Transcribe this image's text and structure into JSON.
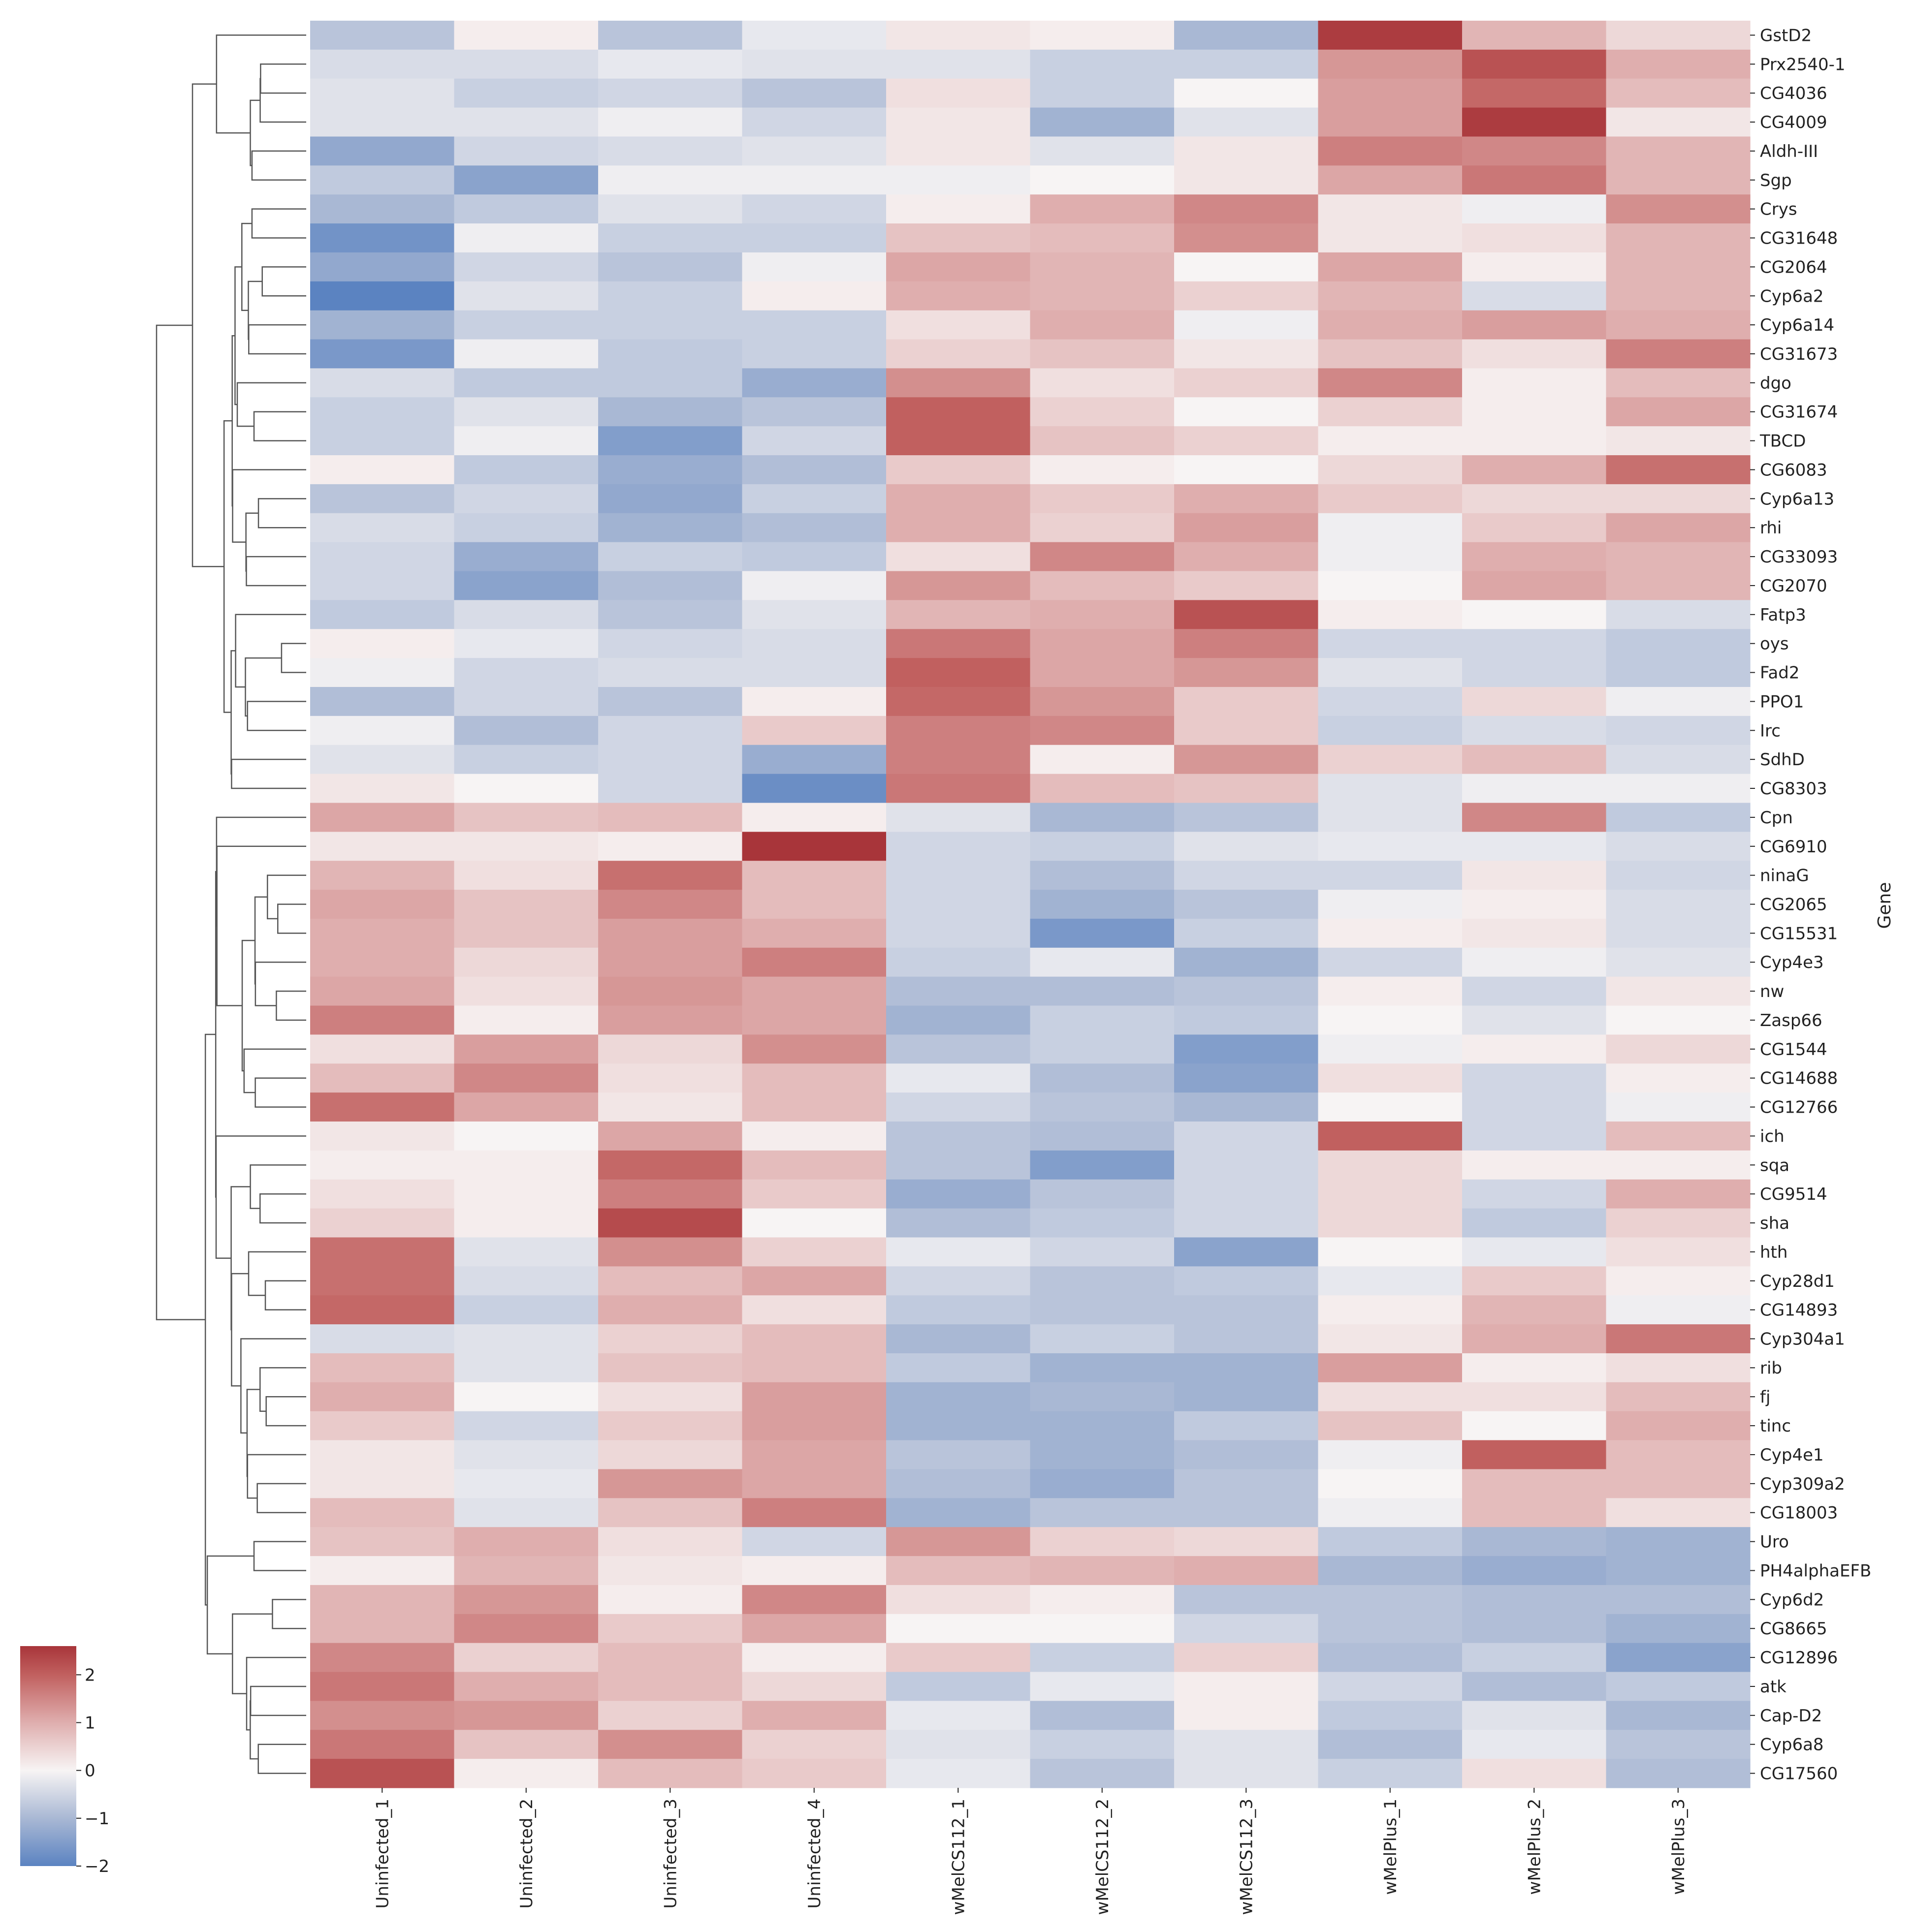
{
  "chart_data": {
    "type": "heatmap",
    "title": "",
    "ylabel": "Gene",
    "xlabel": "",
    "colorbar": {
      "ticks": [
        -2,
        -1,
        0,
        1,
        2
      ],
      "tick_labels": [
        "−2",
        "−1",
        "0",
        "1",
        "2"
      ],
      "range": [
        -2,
        2.6
      ]
    },
    "colors": {
      "neg2": "#5b83c1",
      "neg1": "#a9b8d4",
      "zero": "#f7f4f4",
      "pos1": "#dfaeae",
      "pos2": "#c1605f",
      "max": "#a8353a"
    },
    "columns": [
      "Uninfected_1",
      "Uninfected_2",
      "Uninfected_3",
      "Uninfected_4",
      "wMelCS112_1",
      "wMelCS112_2",
      "wMelCS112_3",
      "wMelPlus_1",
      "wMelPlus_2",
      "wMelPlus_3"
    ],
    "rows": [
      "GstD2",
      "Prx2540-1",
      "CG4036",
      "CG4009",
      "Aldh-III",
      "Sgp",
      "Crys",
      "CG31648",
      "CG2064",
      "Cyp6a2",
      "Cyp6a14",
      "CG31673",
      "dgo",
      "CG31674",
      "TBCD",
      "CG6083",
      "Cyp6a13",
      "rhi",
      "CG33093",
      "CG2070",
      "Fatp3",
      "oys",
      "Fad2",
      "PPO1",
      "Irc",
      "SdhD",
      "CG8303",
      "Cpn",
      "CG6910",
      "ninaG",
      "CG2065",
      "CG15531",
      "Cyp4e3",
      "nw",
      "Zasp66",
      "CG1544",
      "CG14688",
      "CG12766",
      "ich",
      "sqa",
      "CG9514",
      "sha",
      "hth",
      "Cyp28d1",
      "CG14893",
      "Cyp304a1",
      "rib",
      "fj",
      "tinc",
      "Cyp4e1",
      "Cyp309a2",
      "CG18003",
      "Uro",
      "PH4alphaEFB",
      "Cyp6d2",
      "CG8665",
      "CG12896",
      "atk",
      "Cap-D2",
      "Cyp6a8",
      "CG17560"
    ],
    "values": [
      [
        -0.8,
        0.1,
        -0.8,
        -0.2,
        0.2,
        0.1,
        -1.0,
        2.5,
        0.9,
        0.4
      ],
      [
        -0.4,
        -0.4,
        -0.2,
        -0.3,
        -0.3,
        -0.6,
        -0.6,
        1.3,
        2.2,
        1.0
      ],
      [
        -0.3,
        -0.6,
        -0.5,
        -0.8,
        0.3,
        -0.6,
        0.0,
        1.2,
        1.9,
        0.8
      ],
      [
        -0.3,
        -0.3,
        -0.1,
        -0.5,
        0.2,
        -1.1,
        -0.3,
        1.2,
        2.5,
        0.2
      ],
      [
        -1.3,
        -0.5,
        -0.4,
        -0.3,
        0.2,
        -0.3,
        0.2,
        1.6,
        1.5,
        0.9
      ],
      [
        -0.7,
        -1.4,
        -0.1,
        -0.1,
        -0.1,
        0.0,
        0.2,
        1.1,
        1.7,
        0.9
      ],
      [
        -1.0,
        -0.7,
        -0.3,
        -0.5,
        0.1,
        1.0,
        1.5,
        0.2,
        -0.1,
        1.4
      ],
      [
        -1.7,
        -0.1,
        -0.6,
        -0.6,
        0.7,
        0.8,
        1.4,
        0.2,
        0.3,
        0.9
      ],
      [
        -1.3,
        -0.5,
        -0.8,
        -0.1,
        1.1,
        0.9,
        0.0,
        1.1,
        0.1,
        0.9
      ],
      [
        -2.0,
        -0.3,
        -0.6,
        0.1,
        1.0,
        0.9,
        0.5,
        0.9,
        -0.4,
        0.9
      ],
      [
        -1.1,
        -0.6,
        -0.6,
        -0.6,
        0.3,
        1.0,
        -0.1,
        1.0,
        1.2,
        1.0
      ],
      [
        -1.6,
        -0.1,
        -0.7,
        -0.6,
        0.5,
        0.7,
        0.2,
        0.7,
        0.3,
        1.6
      ],
      [
        -0.4,
        -0.7,
        -0.7,
        -1.2,
        1.4,
        0.3,
        0.5,
        1.5,
        0.1,
        0.8
      ],
      [
        -0.6,
        -0.3,
        -1.0,
        -0.8,
        2.0,
        0.5,
        0.0,
        0.5,
        0.1,
        1.1
      ],
      [
        -0.6,
        -0.1,
        -1.5,
        -0.5,
        2.0,
        0.7,
        0.5,
        0.1,
        0.1,
        0.2
      ],
      [
        0.1,
        -0.7,
        -1.2,
        -0.9,
        0.6,
        0.1,
        0.0,
        0.4,
        1.0,
        1.8
      ],
      [
        -0.8,
        -0.5,
        -1.3,
        -0.6,
        1.0,
        0.6,
        1.0,
        0.6,
        0.4,
        0.4
      ],
      [
        -0.4,
        -0.6,
        -1.1,
        -0.9,
        1.0,
        0.5,
        1.2,
        -0.1,
        0.6,
        1.1
      ],
      [
        -0.5,
        -1.2,
        -0.6,
        -0.7,
        0.3,
        1.5,
        1.0,
        -0.1,
        1.0,
        0.9
      ],
      [
        -0.5,
        -1.4,
        -0.9,
        -0.1,
        1.3,
        0.8,
        0.6,
        0.0,
        1.1,
        0.9
      ],
      [
        -0.7,
        -0.4,
        -0.8,
        -0.3,
        0.9,
        1.0,
        2.2,
        0.1,
        0.0,
        -0.4
      ],
      [
        0.1,
        -0.2,
        -0.5,
        -0.4,
        1.7,
        1.1,
        1.6,
        -0.5,
        -0.5,
        -0.7
      ],
      [
        -0.1,
        -0.5,
        -0.4,
        -0.4,
        2.0,
        1.1,
        1.3,
        -0.3,
        -0.5,
        -0.7
      ],
      [
        -0.9,
        -0.5,
        -0.8,
        0.1,
        1.9,
        1.3,
        0.6,
        -0.5,
        0.4,
        -0.1
      ],
      [
        -0.1,
        -0.9,
        -0.5,
        0.6,
        1.6,
        1.5,
        0.6,
        -0.6,
        -0.4,
        -0.5
      ],
      [
        -0.3,
        -0.6,
        -0.5,
        -1.2,
        1.6,
        0.1,
        1.3,
        0.5,
        0.8,
        -0.4
      ],
      [
        0.2,
        0.0,
        -0.5,
        -1.8,
        1.7,
        0.8,
        0.7,
        -0.3,
        -0.1,
        -0.1
      ],
      [
        1.1,
        0.7,
        0.8,
        0.1,
        -0.3,
        -1.0,
        -0.8,
        -0.3,
        1.5,
        -0.7
      ],
      [
        0.2,
        0.2,
        0.1,
        2.6,
        -0.5,
        -0.6,
        -0.3,
        -0.2,
        -0.2,
        -0.4
      ],
      [
        0.9,
        0.3,
        1.8,
        0.8,
        -0.5,
        -0.9,
        -0.5,
        -0.5,
        0.2,
        -0.5
      ],
      [
        1.1,
        0.7,
        1.5,
        0.8,
        -0.5,
        -1.1,
        -0.8,
        -0.1,
        0.1,
        -0.4
      ],
      [
        1.0,
        0.7,
        1.2,
        1.0,
        -0.5,
        -1.6,
        -0.6,
        0.1,
        0.2,
        -0.4
      ],
      [
        1.0,
        0.4,
        1.2,
        1.6,
        -0.6,
        -0.2,
        -1.1,
        -0.5,
        -0.1,
        -0.3
      ],
      [
        1.1,
        0.3,
        1.3,
        1.1,
        -0.9,
        -0.9,
        -0.8,
        0.1,
        -0.5,
        0.2
      ],
      [
        1.6,
        0.1,
        1.2,
        1.1,
        -1.1,
        -0.6,
        -0.7,
        0.0,
        -0.3,
        0.0
      ],
      [
        0.3,
        1.2,
        0.4,
        1.4,
        -0.8,
        -0.6,
        -1.5,
        -0.1,
        0.1,
        0.4
      ],
      [
        0.8,
        1.5,
        0.3,
        0.8,
        -0.2,
        -0.9,
        -1.4,
        0.3,
        -0.5,
        0.1
      ],
      [
        1.8,
        1.1,
        0.2,
        0.8,
        -0.5,
        -0.8,
        -1.0,
        0.0,
        -0.5,
        -0.1
      ],
      [
        0.2,
        0.0,
        1.1,
        0.1,
        -0.8,
        -0.9,
        -0.5,
        2.0,
        -0.5,
        0.8
      ],
      [
        0.1,
        0.1,
        1.9,
        0.8,
        -0.8,
        -1.5,
        -0.5,
        0.4,
        0.1,
        0.1
      ],
      [
        0.3,
        0.1,
        1.6,
        0.6,
        -1.2,
        -0.8,
        -0.5,
        0.4,
        -0.5,
        1.0
      ],
      [
        0.5,
        0.1,
        2.3,
        0.0,
        -0.9,
        -0.7,
        -0.5,
        0.4,
        -0.7,
        0.5
      ],
      [
        1.8,
        -0.3,
        1.4,
        0.5,
        -0.2,
        -0.5,
        -1.4,
        0.0,
        -0.2,
        0.3
      ],
      [
        1.8,
        -0.4,
        0.8,
        1.1,
        -0.5,
        -0.8,
        -0.7,
        -0.2,
        0.6,
        0.1
      ],
      [
        1.9,
        -0.6,
        1.0,
        0.3,
        -0.7,
        -0.8,
        -0.8,
        0.1,
        0.9,
        -0.1
      ],
      [
        -0.4,
        -0.3,
        0.5,
        0.8,
        -1.0,
        -0.6,
        -0.8,
        0.2,
        1.0,
        1.7
      ],
      [
        0.8,
        -0.3,
        0.7,
        0.8,
        -0.7,
        -1.1,
        -1.1,
        1.2,
        0.1,
        0.3
      ],
      [
        1.0,
        0.0,
        0.3,
        1.2,
        -1.1,
        -1.0,
        -1.1,
        0.3,
        0.3,
        0.8
      ],
      [
        0.6,
        -0.5,
        0.6,
        1.2,
        -1.1,
        -1.1,
        -0.7,
        0.7,
        0.0,
        1.0
      ],
      [
        0.2,
        -0.3,
        0.4,
        1.1,
        -0.8,
        -1.1,
        -0.9,
        -0.1,
        2.0,
        0.8
      ],
      [
        0.2,
        -0.2,
        1.3,
        1.1,
        -0.9,
        -1.2,
        -0.8,
        0.0,
        0.8,
        0.8
      ],
      [
        0.8,
        -0.3,
        0.7,
        1.6,
        -1.1,
        -0.8,
        -0.8,
        -0.1,
        0.8,
        0.3
      ],
      [
        0.7,
        1.0,
        0.3,
        -0.5,
        1.3,
        0.5,
        0.4,
        -0.7,
        -1.0,
        -1.1
      ],
      [
        0.1,
        0.9,
        0.2,
        0.1,
        0.8,
        0.9,
        1.0,
        -1.0,
        -1.2,
        -1.1
      ],
      [
        0.9,
        1.3,
        0.1,
        1.5,
        0.3,
        0.1,
        -0.8,
        -0.8,
        -0.9,
        -0.9
      ],
      [
        0.9,
        1.5,
        0.6,
        1.1,
        0.0,
        0.0,
        -0.5,
        -0.8,
        -0.9,
        -1.1
      ],
      [
        1.5,
        0.5,
        0.8,
        0.1,
        0.6,
        -0.6,
        0.5,
        -0.9,
        -0.6,
        -1.4
      ],
      [
        1.7,
        1.0,
        0.8,
        0.4,
        -0.7,
        -0.2,
        0.1,
        -0.5,
        -0.9,
        -0.7
      ],
      [
        1.4,
        1.3,
        0.5,
        1.0,
        -0.2,
        -0.9,
        0.1,
        -0.7,
        -0.3,
        -1.0
      ],
      [
        1.7,
        0.7,
        1.4,
        0.5,
        -0.3,
        -0.6,
        -0.3,
        -0.9,
        -0.2,
        -0.8
      ],
      [
        2.2,
        0.1,
        0.8,
        0.6,
        -0.2,
        -0.8,
        -0.3,
        -0.6,
        0.3,
        -0.9
      ]
    ]
  }
}
